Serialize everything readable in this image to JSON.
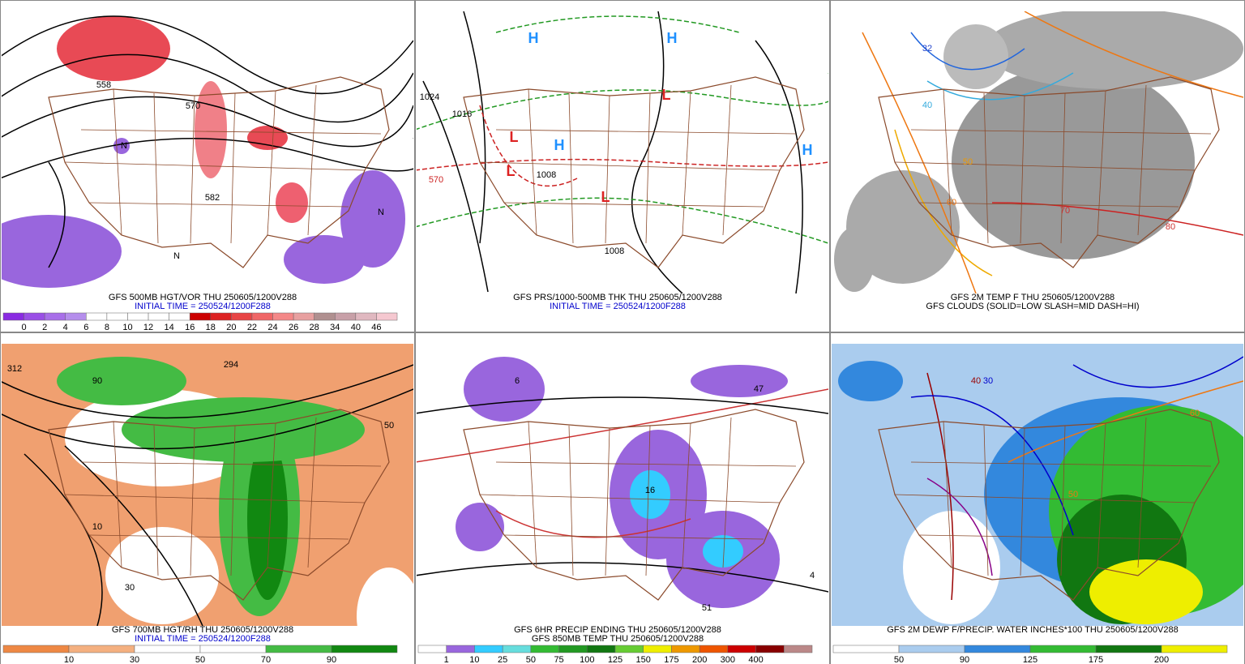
{
  "panels": [
    {
      "captions": [
        "GFS 500MB HGT/VOR THU 250605/1200V288",
        "INITIAL TIME = 250524/1200F288"
      ],
      "caption_colors": [
        "#000000",
        "#0000cc"
      ],
      "map_labels": [
        "558",
        "570",
        "582",
        "N",
        "N",
        "N"
      ],
      "colorbar": {
        "labels": [
          0,
          2,
          4,
          6,
          8,
          10,
          12,
          14,
          16,
          18,
          20,
          22,
          24,
          26,
          28,
          34,
          40,
          46
        ],
        "colors": [
          "#8a2be2",
          "#9a4fe6",
          "#a86fe9",
          "#b58eec",
          "#ffffff",
          "#ffffff",
          "#ffffff",
          "#ffffff",
          "#ffffff",
          "#cc0000",
          "#dd2222",
          "#e84444",
          "#f06666",
          "#f48888",
          "#e8a0a0",
          "#b09090",
          "#c8a0a8",
          "#e0b8c0",
          "#f5c8d0"
        ]
      }
    },
    {
      "captions": [
        "GFS PRS/1000-500MB THK THU 250605/1200V288",
        "INITIAL TIME = 250524/1200F288"
      ],
      "caption_colors": [
        "#000000",
        "#0000cc"
      ],
      "map_labels": [
        "H",
        "H",
        "H",
        "H",
        "L",
        "L",
        "L",
        "L",
        "1024",
        "1016",
        "1008",
        "1008",
        "570"
      ]
    },
    {
      "captions": [
        "GFS 2M TEMP F THU 250605/1200V288",
        "GFS CLOUDS (SOLID=LOW SLASH=MID DASH=HI)"
      ],
      "caption_colors": [
        "#000000",
        "#000000"
      ],
      "map_labels": [
        "32",
        "40",
        "50",
        "60",
        "70",
        "80"
      ]
    },
    {
      "captions": [
        "GFS 700MB HGT/RH THU 250605/1200V288",
        "INITIAL TIME = 250524/1200F288"
      ],
      "caption_colors": [
        "#000000",
        "#0000cc"
      ],
      "map_labels": [
        "312",
        "294",
        "90",
        "50",
        "10",
        "30"
      ],
      "colorbar": {
        "labels": [
          10,
          30,
          50,
          70,
          90
        ],
        "colors": [
          "#ee8844",
          "#f4b080",
          "#ffffff",
          "#ffffff",
          "#44bb44",
          "#118811"
        ]
      }
    },
    {
      "captions": [
        "GFS 6HR PRECIP ENDING THU 250605/1200V288",
        "GFS 850MB TEMP THU 250605/1200V288"
      ],
      "caption_colors": [
        "#000000",
        "#000000"
      ],
      "map_labels": [
        "6",
        "16",
        "47",
        "51",
        "4"
      ],
      "colorbar": {
        "labels": [
          1,
          10,
          25,
          50,
          75,
          100,
          125,
          150,
          175,
          200,
          300,
          400
        ],
        "colors": [
          "#ffffff",
          "#9966dd",
          "#33ccff",
          "#66dddd",
          "#33bb33",
          "#229922",
          "#117711",
          "#66cc33",
          "#eeee00",
          "#ee9900",
          "#ee5500",
          "#cc0000",
          "#880000",
          "#bb8888"
        ]
      }
    },
    {
      "captions": [
        "GFS 2M DEWP F/PRECIP. WATER INCHES*100 THU 250605/1200V288"
      ],
      "caption_colors": [
        "#000000"
      ],
      "map_labels": [
        "30",
        "40",
        "50",
        "60"
      ],
      "colorbar": {
        "labels": [
          50,
          90,
          125,
          175,
          200
        ],
        "colors": [
          "#ffffff",
          "#aaccee",
          "#3388dd",
          "#33bb33",
          "#117711",
          "#eeee00"
        ]
      }
    }
  ]
}
